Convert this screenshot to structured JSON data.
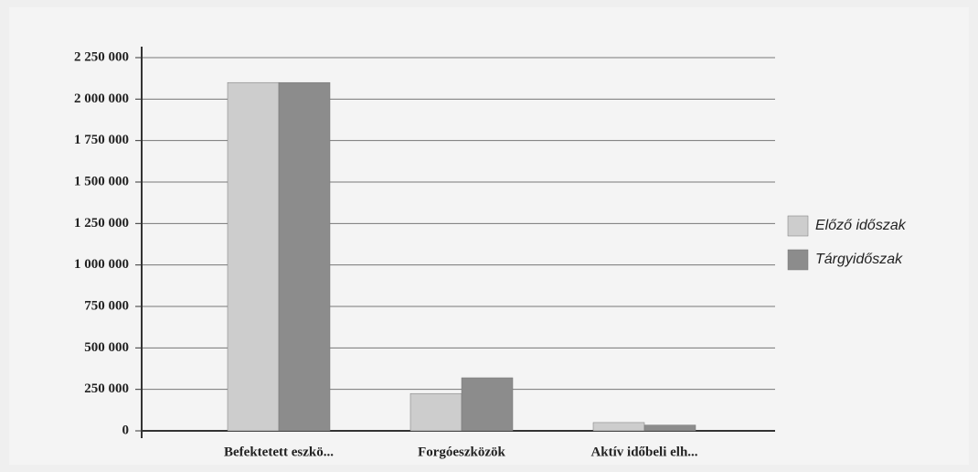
{
  "chart_data": {
    "type": "bar",
    "categories": [
      "Befektetett eszkö...",
      "Forgóeszközök",
      "Aktív időbeli elh..."
    ],
    "series": [
      {
        "name": "Előző időszak",
        "color": "#cdcdcd",
        "values": [
          2100000,
          225000,
          50000
        ]
      },
      {
        "name": "Tárgyidőszak",
        "color": "#8c8c8c",
        "values": [
          2100000,
          320000,
          35000
        ]
      }
    ],
    "ylim": [
      0,
      2250000
    ],
    "yticks": [
      0,
      {
        "value": 250000,
        "label": "250 000"
      },
      {
        "value": 500000,
        "label": "500 000"
      },
      {
        "value": 750000,
        "label": "750 000"
      },
      {
        "value": 1000000,
        "label": "1 000 000"
      },
      {
        "value": 1250000,
        "label": "1 250 000"
      },
      {
        "value": 1500000,
        "label": "1 500 000"
      },
      {
        "value": 1750000,
        "label": "1 750 000"
      },
      {
        "value": 2000000,
        "label": "2 000 000"
      },
      {
        "value": 2250000,
        "label": "2 250 000"
      }
    ],
    "grid": true,
    "legend": "right"
  }
}
